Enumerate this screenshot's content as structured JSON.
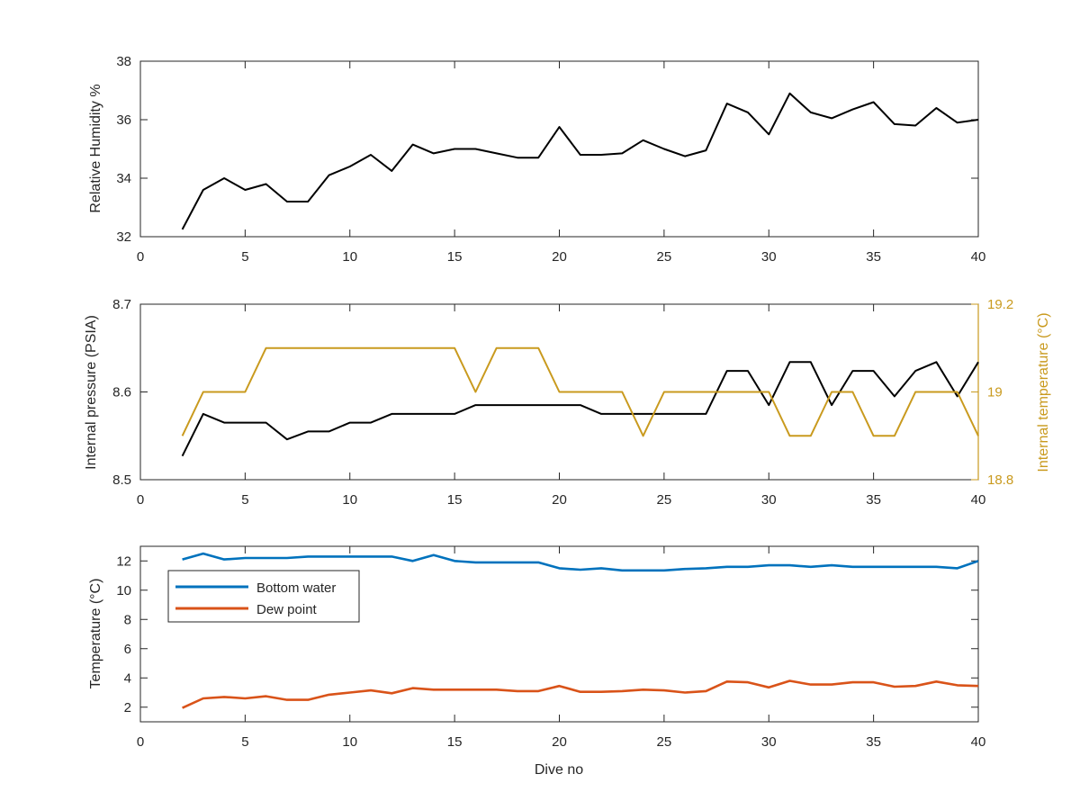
{
  "chart_data": [
    {
      "type": "line",
      "ylabel": "Relative Humidity %",
      "xlabel": "",
      "xlim": [
        0,
        40
      ],
      "ylim": [
        32,
        38
      ],
      "xticks": [
        0,
        5,
        10,
        15,
        20,
        25,
        30,
        35,
        40
      ],
      "yticks": [
        32,
        34,
        36,
        38
      ],
      "grid": false,
      "series": [
        {
          "color": "#000000",
          "x": [
            2,
            3,
            4,
            5,
            6,
            7,
            8,
            9,
            10,
            11,
            12,
            13,
            14,
            15,
            16,
            17,
            18,
            19,
            20,
            21,
            22,
            23,
            24,
            25,
            26,
            27,
            28,
            29,
            30,
            31,
            32,
            33,
            34,
            35,
            36,
            37,
            38,
            39,
            40
          ],
          "values": [
            32.25,
            33.6,
            34.0,
            33.6,
            33.8,
            33.2,
            33.2,
            34.1,
            34.4,
            34.8,
            34.25,
            35.15,
            34.85,
            35.0,
            35.0,
            34.85,
            34.7,
            34.7,
            35.75,
            34.8,
            34.8,
            34.85,
            35.3,
            35.0,
            34.75,
            34.95,
            36.55,
            36.25,
            35.5,
            36.9,
            36.25,
            36.05,
            36.35,
            36.6,
            35.85,
            35.8,
            36.4,
            35.9,
            36.0
          ]
        }
      ]
    },
    {
      "type": "line",
      "ylabel": "Internal pressure (PSIA)",
      "ylabel_right": "Internal temperature (°C)",
      "xlabel": "",
      "xlim": [
        0,
        40
      ],
      "ylim": [
        8.5,
        8.7
      ],
      "ylim_right": [
        18.8,
        19.2
      ],
      "xticks": [
        0,
        5,
        10,
        15,
        20,
        25,
        30,
        35,
        40
      ],
      "yticks": [
        8.5,
        8.6,
        8.7
      ],
      "yticks_right": [
        18.8,
        19,
        19.2
      ],
      "grid": false,
      "series": [
        {
          "axis": "left",
          "color": "#000000",
          "x": [
            2,
            3,
            4,
            5,
            6,
            7,
            8,
            9,
            10,
            11,
            12,
            13,
            14,
            15,
            16,
            17,
            18,
            19,
            20,
            21,
            22,
            23,
            24,
            25,
            26,
            27,
            28,
            29,
            30,
            31,
            32,
            33,
            34,
            35,
            36,
            37,
            38,
            39,
            40
          ],
          "values": [
            8.527,
            8.575,
            8.565,
            8.565,
            8.565,
            8.546,
            8.555,
            8.555,
            8.565,
            8.565,
            8.575,
            8.575,
            8.575,
            8.575,
            8.585,
            8.585,
            8.585,
            8.585,
            8.585,
            8.585,
            8.575,
            8.575,
            8.575,
            8.575,
            8.575,
            8.575,
            8.624,
            8.624,
            8.585,
            8.634,
            8.634,
            8.585,
            8.624,
            8.624,
            8.595,
            8.624,
            8.634,
            8.595,
            8.634
          ]
        },
        {
          "axis": "right",
          "color": "#c99a1e",
          "x": [
            2,
            3,
            4,
            5,
            6,
            7,
            8,
            9,
            10,
            11,
            12,
            13,
            14,
            15,
            16,
            17,
            18,
            19,
            20,
            21,
            22,
            23,
            24,
            25,
            26,
            27,
            28,
            29,
            30,
            31,
            32,
            33,
            34,
            35,
            36,
            37,
            38,
            39,
            40
          ],
          "values": [
            18.9,
            19.0,
            19.0,
            19.0,
            19.1,
            19.1,
            19.1,
            19.1,
            19.1,
            19.1,
            19.1,
            19.1,
            19.1,
            19.1,
            19.0,
            19.1,
            19.1,
            19.1,
            19.0,
            19.0,
            19.0,
            19.0,
            18.9,
            19.0,
            19.0,
            19.0,
            19.0,
            19.0,
            19.0,
            18.9,
            18.9,
            19.0,
            19.0,
            18.9,
            18.9,
            19.0,
            19.0,
            19.0,
            18.9
          ]
        }
      ]
    },
    {
      "type": "line",
      "ylabel": "Temperature (°C)",
      "xlabel": "Dive no",
      "xlim": [
        0,
        40
      ],
      "ylim": [
        1,
        13
      ],
      "xticks": [
        0,
        5,
        10,
        15,
        20,
        25,
        30,
        35,
        40
      ],
      "yticks": [
        2,
        4,
        6,
        8,
        10,
        12
      ],
      "grid": false,
      "legend": "top-left",
      "series": [
        {
          "name": "Bottom water",
          "color": "#0072bd",
          "x": [
            2,
            3,
            4,
            5,
            6,
            7,
            8,
            9,
            10,
            11,
            12,
            13,
            14,
            15,
            16,
            17,
            18,
            19,
            20,
            21,
            22,
            23,
            24,
            25,
            26,
            27,
            28,
            29,
            30,
            31,
            32,
            33,
            34,
            35,
            36,
            37,
            38,
            39,
            40
          ],
          "values": [
            12.1,
            12.5,
            12.1,
            12.2,
            12.2,
            12.2,
            12.3,
            12.3,
            12.3,
            12.3,
            12.3,
            12.0,
            12.4,
            12.0,
            11.9,
            11.9,
            11.9,
            11.9,
            11.5,
            11.4,
            11.5,
            11.35,
            11.35,
            11.35,
            11.45,
            11.5,
            11.6,
            11.6,
            11.7,
            11.7,
            11.6,
            11.7,
            11.6,
            11.6,
            11.6,
            11.6,
            11.6,
            11.5,
            12.0
          ]
        },
        {
          "name": "Dew point",
          "color": "#d95319",
          "x": [
            2,
            3,
            4,
            5,
            6,
            7,
            8,
            9,
            10,
            11,
            12,
            13,
            14,
            15,
            16,
            17,
            18,
            19,
            20,
            21,
            22,
            23,
            24,
            25,
            26,
            27,
            28,
            29,
            30,
            31,
            32,
            33,
            34,
            35,
            36,
            37,
            38,
            39,
            40
          ],
          "values": [
            1.95,
            2.6,
            2.7,
            2.6,
            2.75,
            2.5,
            2.5,
            2.85,
            3.0,
            3.15,
            2.95,
            3.3,
            3.2,
            3.2,
            3.2,
            3.2,
            3.1,
            3.1,
            3.45,
            3.05,
            3.05,
            3.1,
            3.2,
            3.15,
            3.0,
            3.1,
            3.75,
            3.7,
            3.35,
            3.8,
            3.55,
            3.55,
            3.7,
            3.7,
            3.4,
            3.45,
            3.75,
            3.5,
            3.45
          ]
        }
      ]
    }
  ]
}
